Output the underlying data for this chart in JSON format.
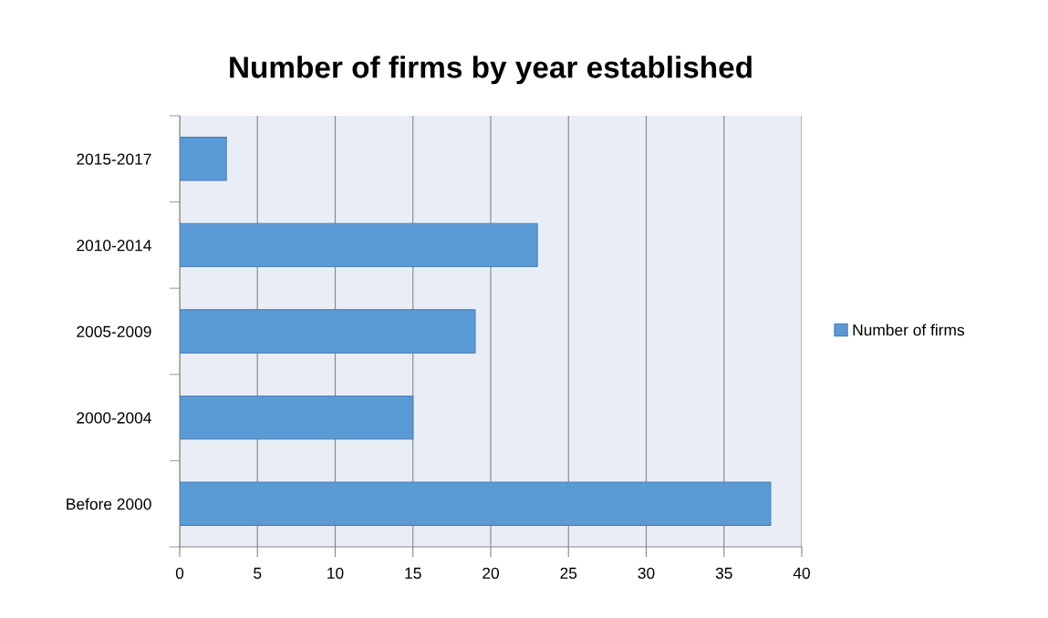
{
  "chart_data": {
    "type": "bar",
    "orientation": "horizontal",
    "title": "Number of firms by year established",
    "categories": [
      "2015-2017",
      "2010-2014",
      "2005-2009",
      "2000-2004",
      "Before 2000"
    ],
    "series": [
      {
        "name": "Number of firms",
        "color": "#5b9bd5",
        "values": [
          3,
          23,
          19,
          15,
          38
        ]
      }
    ],
    "xlim": [
      0,
      40
    ],
    "xticks": [
      0,
      5,
      10,
      15,
      20,
      25,
      30,
      35,
      40
    ],
    "grid": "x",
    "legend": "right"
  }
}
